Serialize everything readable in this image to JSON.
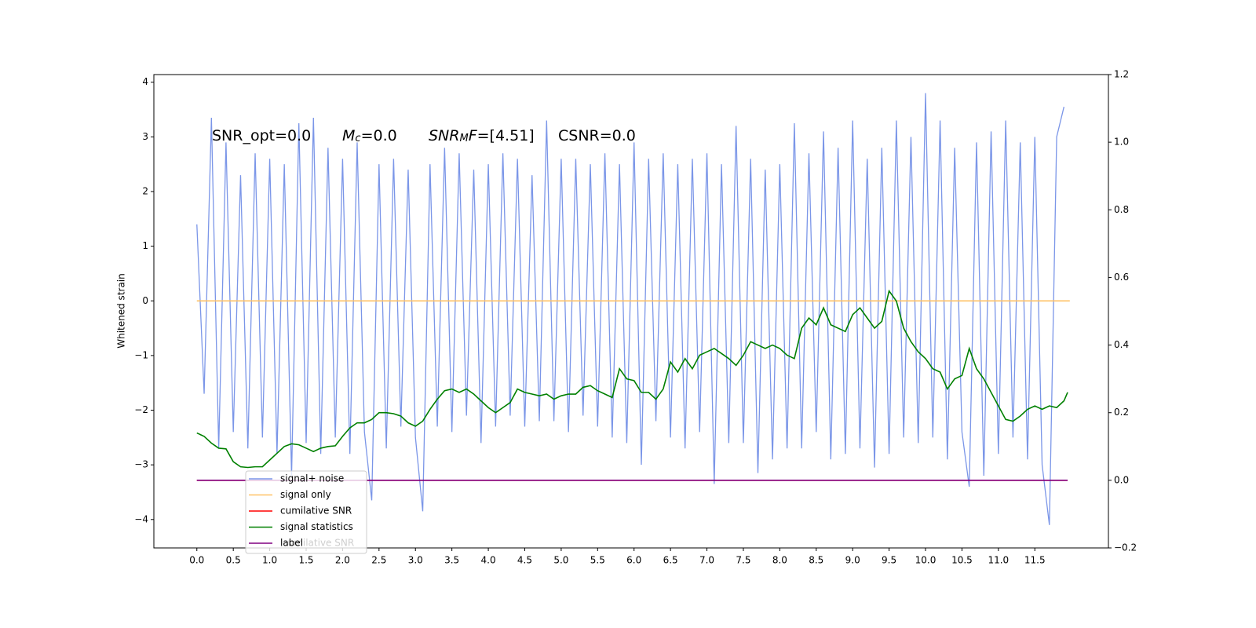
{
  "chart_data": {
    "type": "line",
    "title": [
      [
        {
          "text": "SNR_opt=0.0"
        }
      ],
      [
        {
          "text": "M",
          "style": "italic"
        },
        {
          "text": "c",
          "style": "italic-sub"
        },
        {
          "text": "=0.0"
        }
      ],
      [
        {
          "text": "SNR",
          "style": "italic"
        },
        {
          "text": "M",
          "style": "italic-sub"
        },
        {
          "text": "F",
          "style": "italic"
        },
        {
          "text": "=[4.51]"
        }
      ],
      [
        {
          "text": "CSNR=0.0"
        }
      ]
    ],
    "ylabel": "Whitened strain",
    "annotations": [
      "cumilative SNR"
    ],
    "xlim": [
      -0.59,
      12.51
    ],
    "xticks": [
      {
        "value": 0,
        "label": "0.0"
      },
      0.5,
      {
        "value": 1,
        "label": "1.0"
      },
      1.5,
      {
        "value": 2,
        "label": "2.0"
      },
      2.5,
      {
        "value": 3,
        "label": "3.0"
      },
      3.5,
      {
        "value": 4,
        "label": "4.0"
      },
      4.5,
      {
        "value": 5,
        "label": "5.0"
      },
      5.5,
      {
        "value": 6,
        "label": "6.0"
      },
      6.5,
      {
        "value": 7,
        "label": "7.0"
      },
      7.5,
      {
        "value": 8,
        "label": "8.0"
      },
      8.5,
      {
        "value": 9,
        "label": "9.0"
      },
      9.5,
      {
        "value": 10,
        "label": "10.0"
      },
      10.5,
      {
        "value": 11,
        "label": "11.0"
      },
      11.5
    ],
    "ylim": [
      -4.52,
      4.14
    ],
    "yticks": [
      {
        "value": -4,
        "label": "−4"
      },
      {
        "value": -3,
        "label": "−3"
      },
      {
        "value": -2,
        "label": "−2"
      },
      {
        "value": -1,
        "label": "−1"
      },
      0,
      1,
      2,
      3,
      4
    ],
    "y2lim": [
      -0.2,
      1.2
    ],
    "y2ticks": [
      {
        "value": -0.2,
        "label": "−0.2"
      },
      {
        "value": 0,
        "label": "0.0"
      },
      0.2,
      0.4,
      0.6,
      0.8,
      {
        "value": 1,
        "label": "1.0"
      },
      1.2
    ],
    "grid": false,
    "legend": "lower left",
    "series": [
      {
        "name": "signal+ noise",
        "color": "#7b96e8",
        "axis": "y",
        "x": [
          0.0,
          0.1,
          0.2,
          0.3,
          0.4,
          0.5,
          0.6,
          0.7,
          0.8,
          0.9,
          1.0,
          1.1,
          1.2,
          1.3,
          1.4,
          1.5,
          1.6,
          1.7,
          1.8,
          1.9,
          2.0,
          2.1,
          2.2,
          2.3,
          2.4,
          2.5,
          2.6,
          2.7,
          2.8,
          2.9,
          3.0,
          3.1,
          3.2,
          3.3,
          3.4,
          3.5,
          3.6,
          3.7,
          3.8,
          3.9,
          4.0,
          4.1,
          4.2,
          4.3,
          4.4,
          4.5,
          4.6,
          4.7,
          4.8,
          4.9,
          5.0,
          5.1,
          5.2,
          5.3,
          5.4,
          5.5,
          5.6,
          5.7,
          5.8,
          5.9,
          6.0,
          6.1,
          6.2,
          6.3,
          6.4,
          6.5,
          6.6,
          6.7,
          6.8,
          6.9,
          7.0,
          7.1,
          7.2,
          7.3,
          7.4,
          7.5,
          7.6,
          7.7,
          7.8,
          7.9,
          8.0,
          8.1,
          8.2,
          8.3,
          8.4,
          8.5,
          8.6,
          8.7,
          8.8,
          8.9,
          9.0,
          9.1,
          9.2,
          9.3,
          9.4,
          9.5,
          9.6,
          9.7,
          9.8,
          9.9,
          10.0,
          10.1,
          10.2,
          10.3,
          10.4,
          10.5,
          10.6,
          10.7,
          10.8,
          10.9,
          11.0,
          11.1,
          11.2,
          11.3,
          11.4,
          11.5,
          11.6,
          11.7,
          11.8,
          11.9
        ],
        "values": [
          1.4,
          -1.7,
          3.35,
          -2.7,
          2.9,
          -2.4,
          2.3,
          -2.7,
          2.7,
          -2.5,
          2.6,
          -2.8,
          2.5,
          -3.2,
          3.25,
          -2.6,
          3.35,
          -2.8,
          2.8,
          -2.5,
          2.6,
          -2.8,
          2.9,
          -2.4,
          -3.65,
          2.5,
          -2.7,
          2.6,
          -2.3,
          2.4,
          -2.5,
          -3.85,
          2.5,
          -2.3,
          2.8,
          -2.4,
          2.7,
          -2.1,
          2.4,
          -2.6,
          2.5,
          -2.3,
          2.7,
          -2.1,
          2.6,
          -2.3,
          2.3,
          -2.2,
          3.3,
          -2.2,
          2.6,
          -2.4,
          2.6,
          -2.1,
          2.5,
          -2.3,
          2.7,
          -2.5,
          2.5,
          -2.6,
          2.9,
          -3.0,
          2.6,
          -2.2,
          2.7,
          -2.5,
          2.5,
          -2.7,
          2.6,
          -2.4,
          2.7,
          -3.35,
          2.5,
          -2.6,
          3.2,
          -2.6,
          2.6,
          -3.15,
          2.4,
          -2.9,
          2.5,
          -2.7,
          3.25,
          -2.7,
          2.7,
          -2.4,
          3.1,
          -2.9,
          2.8,
          -2.8,
          3.3,
          -2.7,
          2.6,
          -3.05,
          2.8,
          -2.8,
          3.3,
          -2.5,
          3.0,
          -2.6,
          3.8,
          -2.5,
          3.3,
          -2.9,
          2.8,
          -2.4,
          -3.4,
          2.9,
          -3.2,
          3.1,
          -2.8,
          3.3,
          -2.5,
          2.9,
          -2.9,
          3.0,
          -3.0,
          -4.1,
          3.0,
          3.55
        ]
      },
      {
        "name": "signal only",
        "color": "#ffc266",
        "axis": "y",
        "x": [
          0.0,
          11.98
        ],
        "values": [
          0,
          0
        ]
      },
      {
        "name": "cumilative SNR",
        "color": "#ff0000",
        "axis": "y2",
        "x": [
          0.0,
          11.95
        ],
        "values": [
          0,
          0
        ]
      },
      {
        "name": "signal statistics",
        "color": "#008000",
        "axis": "y2",
        "x": [
          0.0,
          0.1,
          0.2,
          0.3,
          0.4,
          0.5,
          0.6,
          0.7,
          0.8,
          0.9,
          1.0,
          1.1,
          1.2,
          1.3,
          1.4,
          1.5,
          1.6,
          1.7,
          1.8,
          1.9,
          2.0,
          2.1,
          2.2,
          2.3,
          2.4,
          2.5,
          2.6,
          2.7,
          2.8,
          2.9,
          3.0,
          3.1,
          3.2,
          3.3,
          3.4,
          3.5,
          3.6,
          3.7,
          3.8,
          3.9,
          4.0,
          4.1,
          4.2,
          4.3,
          4.4,
          4.5,
          4.6,
          4.7,
          4.8,
          4.9,
          5.0,
          5.1,
          5.2,
          5.3,
          5.4,
          5.5,
          5.6,
          5.7,
          5.8,
          5.9,
          6.0,
          6.1,
          6.2,
          6.3,
          6.4,
          6.5,
          6.6,
          6.7,
          6.8,
          6.9,
          7.0,
          7.1,
          7.2,
          7.3,
          7.4,
          7.5,
          7.6,
          7.7,
          7.8,
          7.9,
          8.0,
          8.1,
          8.2,
          8.3,
          8.4,
          8.5,
          8.6,
          8.7,
          8.8,
          8.9,
          9.0,
          9.1,
          9.2,
          9.3,
          9.4,
          9.5,
          9.6,
          9.7,
          9.8,
          9.9,
          10.0,
          10.1,
          10.2,
          10.3,
          10.4,
          10.5,
          10.6,
          10.7,
          10.8,
          10.9,
          11.0,
          11.1,
          11.2,
          11.3,
          11.4,
          11.5,
          11.6,
          11.7,
          11.8,
          11.9,
          11.95
        ],
        "values": [
          0.14,
          0.13,
          0.11,
          0.095,
          0.093,
          0.055,
          0.04,
          0.038,
          0.04,
          0.04,
          0.06,
          0.08,
          0.1,
          0.108,
          0.105,
          0.095,
          0.085,
          0.095,
          0.1,
          0.102,
          0.13,
          0.155,
          0.17,
          0.17,
          0.18,
          0.2,
          0.2,
          0.197,
          0.19,
          0.17,
          0.16,
          0.175,
          0.21,
          0.24,
          0.265,
          0.27,
          0.26,
          0.27,
          0.255,
          0.235,
          0.215,
          0.2,
          0.215,
          0.23,
          0.27,
          0.26,
          0.255,
          0.25,
          0.255,
          0.24,
          0.25,
          0.255,
          0.255,
          0.275,
          0.28,
          0.265,
          0.255,
          0.245,
          0.33,
          0.3,
          0.295,
          0.26,
          0.26,
          0.24,
          0.27,
          0.35,
          0.32,
          0.36,
          0.33,
          0.37,
          0.38,
          0.39,
          0.375,
          0.36,
          0.34,
          0.37,
          0.41,
          0.4,
          0.39,
          0.4,
          0.39,
          0.37,
          0.36,
          0.45,
          0.48,
          0.46,
          0.51,
          0.46,
          0.45,
          0.44,
          0.49,
          0.51,
          0.48,
          0.45,
          0.47,
          0.56,
          0.53,
          0.45,
          0.41,
          0.38,
          0.36,
          0.33,
          0.32,
          0.27,
          0.3,
          0.31,
          0.39,
          0.33,
          0.3,
          0.26,
          0.22,
          0.18,
          0.175,
          0.19,
          0.21,
          0.22,
          0.21,
          0.22,
          0.215,
          0.235,
          0.26
        ]
      },
      {
        "name": "label",
        "color": "#800080",
        "axis": "y2",
        "x": [
          0.0,
          11.95
        ],
        "values": [
          0,
          0
        ]
      }
    ]
  }
}
